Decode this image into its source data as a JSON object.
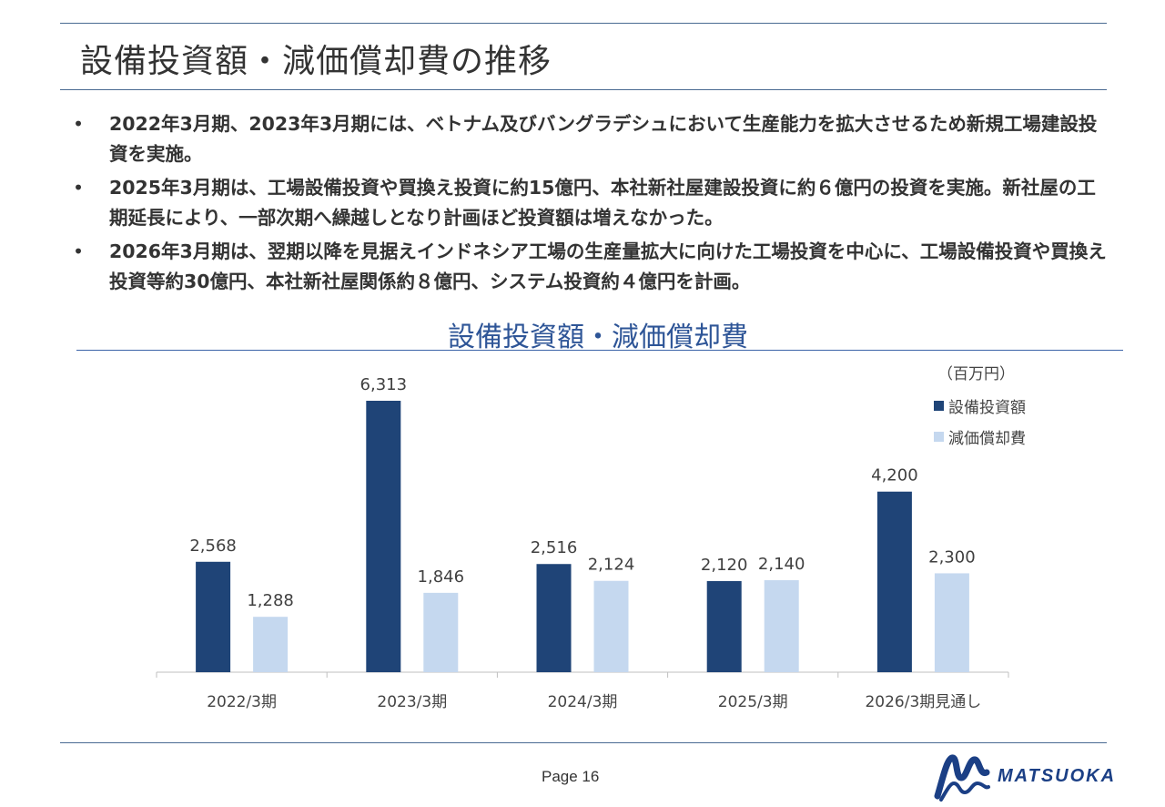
{
  "slide": {
    "title": "設備投資額・減価償却費の推移",
    "bullets": [
      "2022年3月期、2023年3月期には、ベトナム及びバングラデシュにおいて生産能力を拡大させるため新規工場建設投資を実施。",
      "2025年3月期は、工場設備投資や買換え投資に約15億円、本社新社屋建設投資に約６億円の投資を実施。新社屋の工期延長により、一部次期へ繰越しとなり計画ほど投資額は増えなかった。",
      "2026年3月期は、翌期以降を見据えインドネシア工場の生産量拡大に向けた工場投資を中心に、工場設備投資や買換え投資等約30億円、本社新社屋関係約８億円、システム投資約４億円を計画。"
    ],
    "bullet_symbol": "•"
  },
  "chart_data": {
    "type": "bar",
    "title": "設備投資額・減価償却費",
    "unit": "（百万円）",
    "categories": [
      "2022/3期",
      "2023/3期",
      "2024/3期",
      "2025/3期",
      "2026/3期見通し"
    ],
    "series": [
      {
        "name": "設備投資額",
        "values": [
          2568,
          6313,
          2516,
          2120,
          4200
        ],
        "labels": [
          "2,568",
          "6,313",
          "2,516",
          "2,120",
          "4,200"
        ],
        "color": "#1f4477"
      },
      {
        "name": "減価償却費",
        "values": [
          1288,
          1846,
          2124,
          2140,
          2300
        ],
        "labels": [
          "1,288",
          "1,846",
          "2,124",
          "2,140",
          "2,300"
        ],
        "color": "#c5d8ef"
      }
    ],
    "ylim": [
      0,
      6313
    ],
    "legend_position": "top-right",
    "grid": false
  },
  "footer": {
    "page_label": "Page 16",
    "logo_text": "MATSUOKA"
  },
  "colors": {
    "rule": "#4a6a92",
    "chart_title": "#2e5597",
    "logo": "#1b3f85"
  },
  "icons": {
    "logo_mark": "matsuoka-wave-logo-icon"
  }
}
